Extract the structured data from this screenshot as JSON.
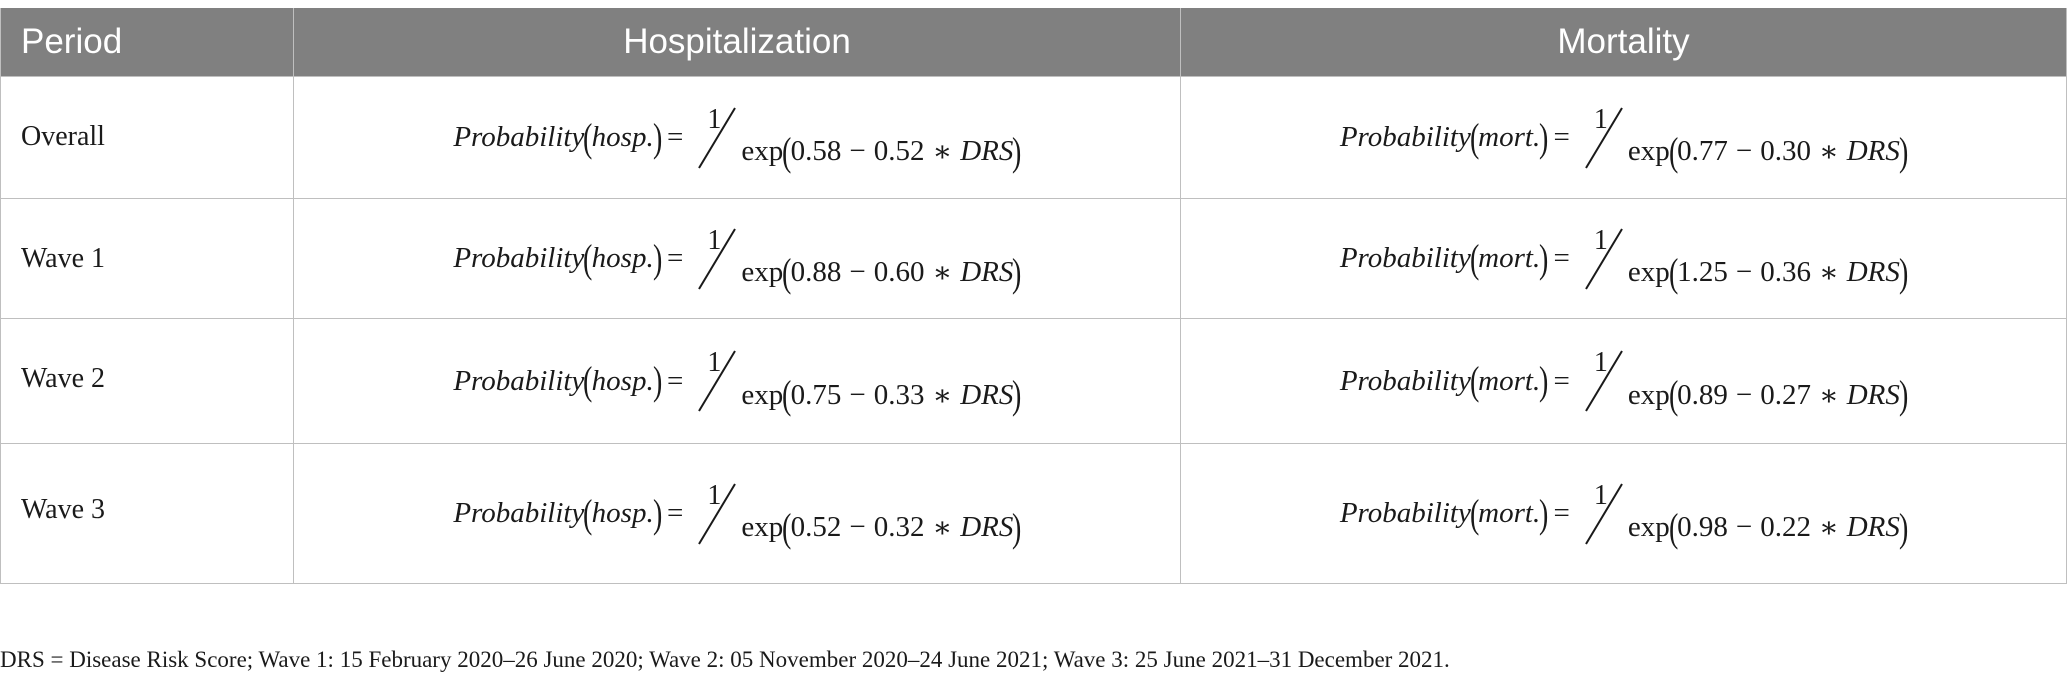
{
  "table": {
    "headers": [
      "Period",
      "Hospitalization",
      "Mortality"
    ],
    "rows": [
      {
        "period": "Overall",
        "hosp": {
          "lhs": "Probability",
          "arg": "hosp.",
          "num": "1",
          "fn": "exp",
          "a": "0.58",
          "op1": "−",
          "b": "0.52",
          "op2": "∗",
          "var": "DRS"
        },
        "mort": {
          "lhs": "Probability",
          "arg": "mort.",
          "num": "1",
          "fn": "exp",
          "a": "0.77",
          "op1": "−",
          "b": "0.30",
          "op2": "∗",
          "var": "DRS"
        }
      },
      {
        "period": "Wave 1",
        "hosp": {
          "lhs": "Probability",
          "arg": "hosp.",
          "num": "1",
          "fn": "exp",
          "a": "0.88",
          "op1": "−",
          "b": "0.60",
          "op2": "∗",
          "var": "DRS"
        },
        "mort": {
          "lhs": "Probability",
          "arg": "mort.",
          "num": "1",
          "fn": "exp",
          "a": "1.25",
          "op1": "−",
          "b": "0.36",
          "op2": "∗",
          "var": "DRS"
        }
      },
      {
        "period": "Wave 2",
        "hosp": {
          "lhs": "Probability",
          "arg": "hosp.",
          "num": "1",
          "fn": "exp",
          "a": "0.75",
          "op1": "−",
          "b": "0.33",
          "op2": "∗",
          "var": "DRS"
        },
        "mort": {
          "lhs": "Probability",
          "arg": "mort.",
          "num": "1",
          "fn": "exp",
          "a": "0.89",
          "op1": "−",
          "b": "0.27",
          "op2": "∗",
          "var": "DRS"
        }
      },
      {
        "period": "Wave 3",
        "hosp": {
          "lhs": "Probability",
          "arg": "hosp.",
          "num": "1",
          "fn": "exp",
          "a": "0.52",
          "op1": "−",
          "b": "0.32",
          "op2": "∗",
          "var": "DRS"
        },
        "mort": {
          "lhs": "Probability",
          "arg": "mort.",
          "num": "1",
          "fn": "exp",
          "a": "0.98",
          "op1": "−",
          "b": "0.22",
          "op2": "∗",
          "var": "DRS"
        }
      }
    ]
  },
  "footnote": "DRS = Disease Risk Score; Wave 1: 15 February 2020–26 June 2020; Wave 2: 05 November 2020–24 June 2021; Wave 3: 25 June 2021–31 December 2021.",
  "colors": {
    "header_bg": "#808080",
    "header_text": "#ffffff",
    "grid": "#bfbfbf",
    "text": "#1a1a1a"
  }
}
